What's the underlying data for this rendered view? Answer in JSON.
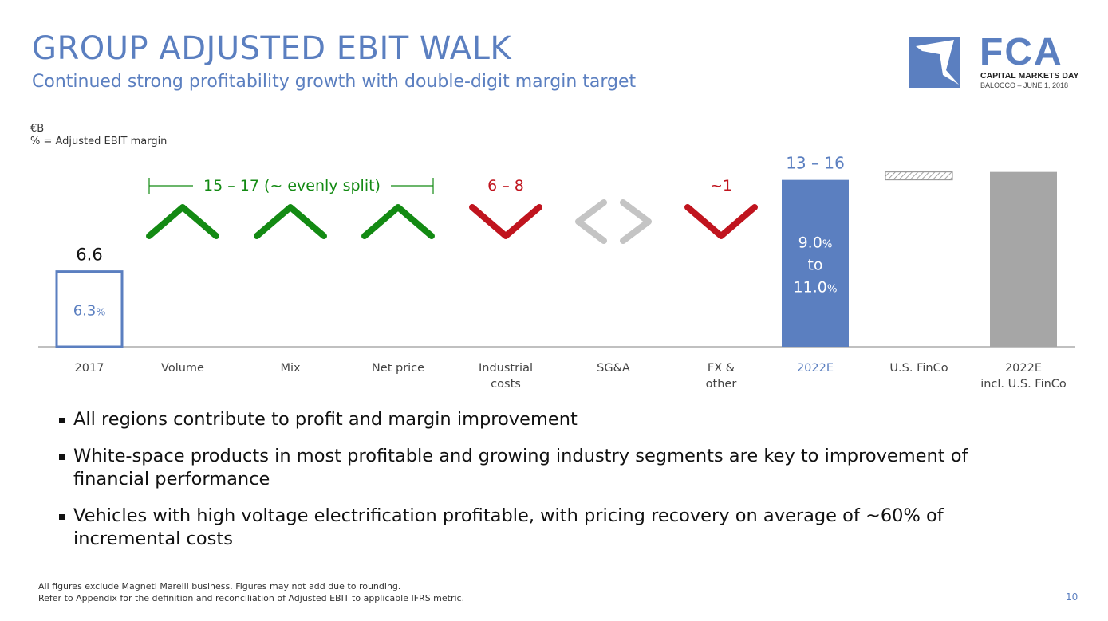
{
  "header": {
    "title": "GROUP ADJUSTED EBIT WALK",
    "subtitle": "Continued strong profitability growth with double-digit margin target"
  },
  "logo": {
    "name": "FCA",
    "line1": "CAPITAL MARKETS DAY",
    "line2": "BALOCCO – JUNE 1, 2018"
  },
  "units": {
    "line1": "€B",
    "line2": "% = Adjusted EBIT margin"
  },
  "chart_data": {
    "type": "bar",
    "subtype": "waterfall",
    "categories": [
      [
        "2017"
      ],
      [
        "Volume"
      ],
      [
        "Mix"
      ],
      [
        "Net price"
      ],
      [
        "Industrial",
        "costs"
      ],
      [
        "SG&A"
      ],
      [
        "FX &",
        "other"
      ],
      [
        "2022E"
      ],
      [
        "U.S. FinCo"
      ],
      [
        "2022E",
        "incl. U.S. FinCo"
      ]
    ],
    "bars": [
      {
        "category_index": 0,
        "value": 6.6,
        "label": "6.6",
        "margin": "6.3",
        "style": "outline"
      },
      {
        "category_index": 7,
        "value_range": [
          13,
          16
        ],
        "label": "13 – 16",
        "margin_from": "9.0",
        "margin_to_word": "to",
        "margin_to": "11.0",
        "style": "filled"
      },
      {
        "category_index": 8,
        "style": "hatched"
      },
      {
        "category_index": 9,
        "style": "gray"
      }
    ],
    "percent_sign": "%",
    "direction_markers": [
      {
        "category_index": 1,
        "direction": "up"
      },
      {
        "category_index": 2,
        "direction": "up"
      },
      {
        "category_index": 3,
        "direction": "up"
      },
      {
        "category_index": 4,
        "direction": "down"
      },
      {
        "category_index": 5,
        "direction": "neutral"
      },
      {
        "category_index": 6,
        "direction": "down"
      }
    ],
    "annotations": [
      {
        "text": "15 – 17  (~ evenly split)",
        "spans_categories": [
          1,
          3
        ],
        "color": "#138a13"
      },
      {
        "text": "6 – 8",
        "category_index": 4,
        "color": "#c0141e"
      },
      {
        "text": "~1",
        "category_index": 6,
        "color": "#c0141e"
      }
    ],
    "colors": {
      "blue": "#5b7fc0",
      "green": "#138a13",
      "red": "#c0141e",
      "gray": "#a6a6a6",
      "neutral_marker": "#c4c4c4",
      "axis": "#9a9a9a"
    }
  },
  "bullets": [
    "All regions contribute to profit and margin improvement",
    "White-space products in most profitable and growing industry segments are key to improvement of financial performance",
    "Vehicles with high voltage electrification profitable, with pricing recovery on average of ~60% of incremental costs"
  ],
  "footnote": {
    "line1": "All figures exclude Magneti Marelli business. Figures may not add due to rounding.",
    "line2": "Refer to Appendix for the definition and reconciliation of Adjusted EBIT to applicable IFRS metric."
  },
  "page_number": "10"
}
